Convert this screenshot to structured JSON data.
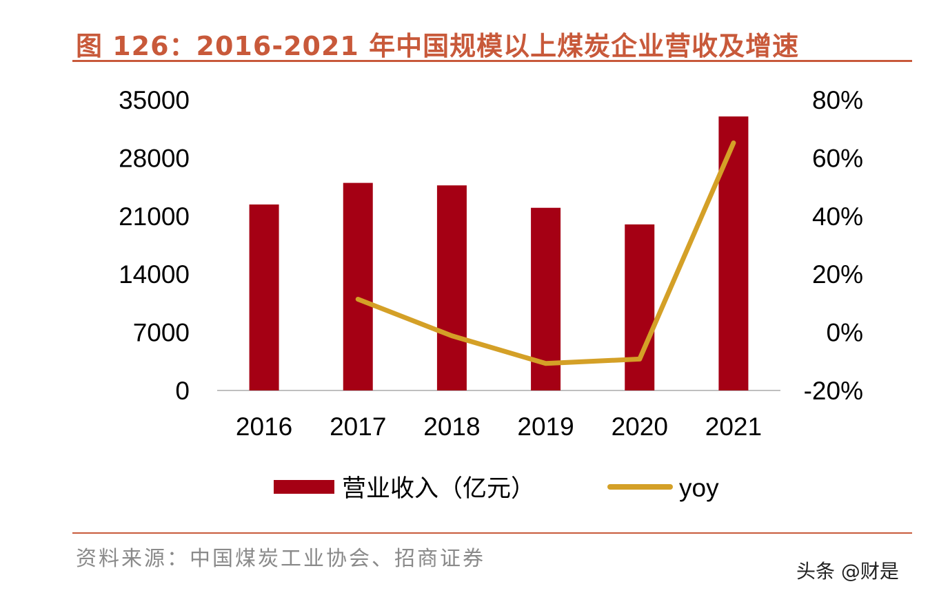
{
  "title": "图 126：2016-2021 年中国规模以上煤炭企业营收及增速",
  "source": "资料来源：中国煤炭工业协会、招商证券",
  "watermark": "头条 @财是",
  "chart_data": {
    "type": "bar+line",
    "categories": [
      "2016",
      "2017",
      "2018",
      "2019",
      "2020",
      "2021"
    ],
    "series": [
      {
        "name": "营业收入（亿元）",
        "type": "bar",
        "axis": "left",
        "color": "#a50014",
        "values": [
          22400,
          25000,
          24700,
          22000,
          20000,
          33000
        ]
      },
      {
        "name": "yoy",
        "type": "line",
        "axis": "right",
        "color": "#d4a027",
        "values": [
          null,
          11.4,
          -1.2,
          -10.7,
          -9.2,
          65.2
        ]
      }
    ],
    "left_axis": {
      "ylim": [
        0,
        35000
      ],
      "ticks": [
        "0",
        "7000",
        "14000",
        "21000",
        "28000",
        "35000"
      ]
    },
    "right_axis": {
      "ylim": [
        -20,
        80
      ],
      "unit": "%",
      "ticks": [
        "-20%",
        "0%",
        "20%",
        "40%",
        "60%",
        "80%"
      ]
    },
    "grid": false,
    "legend": "bottom"
  }
}
